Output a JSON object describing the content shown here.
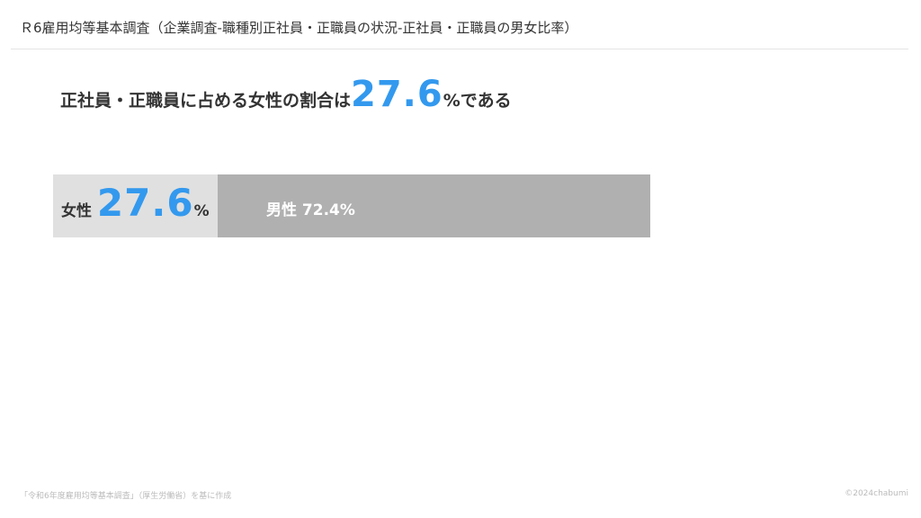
{
  "title": "Ｒ6雇用均等基本調査（企業調査-職種別正社員・正職員の状況-正社員・正職員の男女比率）",
  "headline": {
    "prefix": "正社員・正職員に占める女性の割合は",
    "value": "27.6",
    "suffix": "%である"
  },
  "chart_data": {
    "type": "bar",
    "orientation": "horizontal-stacked",
    "categories": [
      "女性",
      "男性"
    ],
    "values": [
      27.6,
      72.4
    ],
    "unit": "%",
    "colors": {
      "女性": "#e0e0e0",
      "男性": "#b0b0b0",
      "accent": "#3399ee"
    },
    "labels": {
      "women_name": "女性",
      "women_value": "27.6",
      "women_unit": "%",
      "men": "男性 72.4%"
    }
  },
  "footer": {
    "source": "「令和6年度雇用均等基本調査」（厚生労働省）を基に作成",
    "copyright": "©2024chabumi"
  }
}
